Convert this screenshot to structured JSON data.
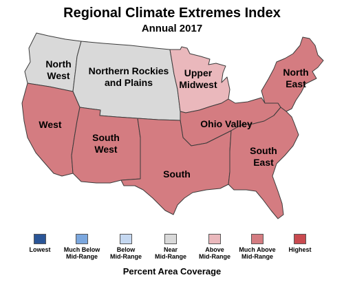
{
  "title": "Regional Climate Extremes Index",
  "subtitle": "Annual 2017",
  "colors": {
    "lowest": "#2a5597",
    "much_below": "#7ba7de",
    "below": "#c5d8f1",
    "near": "#d9d9d9",
    "above": "#eab8bc",
    "much_above": "#d47c81",
    "highest": "#c94a4f",
    "border": "#3a3a3a"
  },
  "regions": [
    {
      "id": "northwest",
      "name": "North West",
      "line1": "North",
      "line2": "West",
      "category": "Near Mid-Range",
      "color": "#d9d9d9"
    },
    {
      "id": "northern-rockies",
      "name": "Northern Rockies and Plains",
      "line1": "Northern Rockies",
      "line2": "and Plains",
      "category": "Near Mid-Range",
      "color": "#d9d9d9"
    },
    {
      "id": "upper-midwest",
      "name": "Upper Midwest",
      "line1": "Upper",
      "line2": "Midwest",
      "category": "Above Mid-Range",
      "color": "#eab8bc"
    },
    {
      "id": "northeast",
      "name": "North East",
      "line1": "North",
      "line2": "East",
      "category": "Much Above Mid-Range",
      "color": "#d47c81"
    },
    {
      "id": "west",
      "name": "West",
      "line1": "West",
      "line2": "",
      "category": "Much Above Mid-Range",
      "color": "#d47c81"
    },
    {
      "id": "southwest",
      "name": "South West",
      "line1": "South",
      "line2": "West",
      "category": "Much Above Mid-Range",
      "color": "#d47c81"
    },
    {
      "id": "ohio-valley",
      "name": "Ohio Valley",
      "line1": "Ohio Valley",
      "line2": "",
      "category": "Much Above Mid-Range",
      "color": "#d47c81"
    },
    {
      "id": "south",
      "name": "South",
      "line1": "South",
      "line2": "",
      "category": "Much Above Mid-Range",
      "color": "#d47c81"
    },
    {
      "id": "southeast",
      "name": "South East",
      "line1": "South",
      "line2": "East",
      "category": "Much Above Mid-Range",
      "color": "#d47c81"
    }
  ],
  "legend": [
    {
      "line1": "Lowest",
      "line2": "",
      "color": "#2a5597"
    },
    {
      "line1": "Much Below",
      "line2": "Mid-Range",
      "color": "#7ba7de"
    },
    {
      "line1": "Below",
      "line2": "Mid-Range",
      "color": "#c5d8f1"
    },
    {
      "line1": "Near",
      "line2": "Mid-Range",
      "color": "#d9d9d9"
    },
    {
      "line1": "Above",
      "line2": "Mid-Range",
      "color": "#eab8bc"
    },
    {
      "line1": "Much Above",
      "line2": "Mid-Range",
      "color": "#d47c81"
    },
    {
      "line1": "Highest",
      "line2": "",
      "color": "#c94a4f"
    }
  ],
  "footer": "Percent Area Coverage"
}
